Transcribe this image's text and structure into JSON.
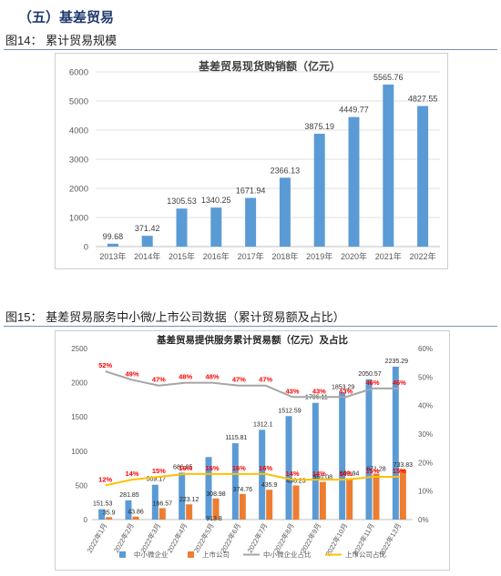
{
  "section_title": "（五）基差贸易",
  "figures": [
    {
      "caption": "图14：  累计贸易规模"
    },
    {
      "caption": "图15：  基差贸易服务中小微/上市公司数据（累计贸易额及占比）"
    }
  ],
  "colors": {
    "blue": "#5b9bd5",
    "orange": "#ed7d31",
    "gray": "#a5a5a5",
    "gold": "#ffc000",
    "red": "#ff0000"
  },
  "chart_data": [
    {
      "type": "bar",
      "title": "基差贸易现货购销额（亿元）",
      "categories": [
        "2013年",
        "2014年",
        "2015年",
        "2016年",
        "2017年",
        "2018年",
        "2019年",
        "2020年",
        "2021年",
        "2022年"
      ],
      "values": [
        99.68,
        371.42,
        1305.53,
        1340.25,
        1671.94,
        2366.13,
        3875.19,
        4449.77,
        5565.76,
        4827.55
      ],
      "data_labels": [
        "99.68",
        "371.42",
        "1305.53",
        "1340.25",
        "1671.94",
        "2366.13",
        "3875.19",
        "4449.77",
        "5565.76",
        "4827.55"
      ],
      "ylim": [
        0,
        6000
      ],
      "yticks": [
        "0",
        "1000",
        "2000",
        "3000",
        "4000",
        "5000",
        "6000"
      ],
      "grid": true
    },
    {
      "type": "bar",
      "title": "基差贸易提供服务累计贸易额（亿元）及占比",
      "categories": [
        "2022年1月",
        "2022年2月",
        "2022年3月",
        "2022年4月",
        "2022年5月",
        "2022年6月",
        "2022年7月",
        "2022年8月",
        "2022年9月",
        "2022年10月",
        "2022年11月",
        "2022年12月"
      ],
      "series": [
        {
          "name": "中小微企业",
          "axis": "left",
          "kind": "bar",
          "values": [
            151.53,
            281.85,
            509.17,
            686.05,
            913.8,
            1115.81,
            1312.1,
            1512.59,
            1706.11,
            1853.29,
            2050.57,
            2235.29
          ],
          "data_labels": [
            "151.53",
            "281.85",
            "509.17",
            "686.05",
            "",
            "1115.81",
            "1312.1",
            "1512.59",
            "1706.11",
            "1853.29",
            "2050.57",
            "2235.29"
          ]
        },
        {
          "name": "上市公司",
          "axis": "left",
          "kind": "bar",
          "values": [
            35.9,
            43.86,
            166.57,
            223.12,
            308.98,
            374.76,
            435.9,
            498.23,
            550.08,
            602.94,
            671.28,
            733.83
          ],
          "data_labels": [
            "35.9",
            "43.86",
            "166.57",
            "223.12",
            "308.98",
            "374.76",
            "435.9",
            "498.23",
            "550.08",
            "602.94",
            "671.28",
            "733.83"
          ]
        },
        {
          "name": "中小微企业占比",
          "axis": "right",
          "kind": "line",
          "values": [
            52,
            49,
            47,
            48,
            48,
            47,
            47,
            43,
            43,
            43,
            46,
            46
          ],
          "data_labels": [
            "52%",
            "49%",
            "47%",
            "48%",
            "48%",
            "47%",
            "47%",
            "43%",
            "43%",
            "43%",
            "46%",
            "46%"
          ]
        },
        {
          "name": "上市公司占比",
          "axis": "right",
          "kind": "line",
          "values": [
            12,
            14,
            15,
            16,
            16,
            16,
            16,
            14,
            14,
            14,
            15,
            15
          ],
          "data_labels": [
            "12%",
            "14%",
            "15%",
            "16%",
            "16%",
            "16%",
            "16%",
            "14%",
            "14%",
            "14%",
            "15%",
            "15%"
          ]
        }
      ],
      "extra_labels": [
        "913.8"
      ],
      "ylim_left": [
        0,
        2500
      ],
      "yticks_left": [
        "0",
        "500",
        "1000",
        "1500",
        "2000",
        "2500"
      ],
      "ylim_right": [
        0,
        60
      ],
      "yticks_right": [
        "0%",
        "10%",
        "20%",
        "30%",
        "40%",
        "50%",
        "60%"
      ],
      "legend": "bottom",
      "grid": false
    }
  ]
}
